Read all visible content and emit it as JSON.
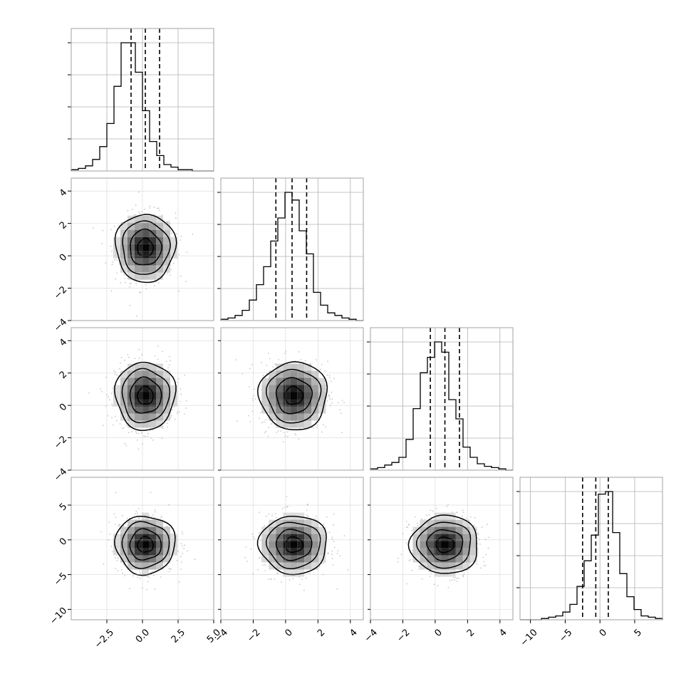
{
  "chart_data": {
    "type": "corner",
    "parameters": 4,
    "grid": true,
    "colors": {
      "ink": "#000000",
      "grid": "#b0b0b0",
      "frame": "#a0a0a0",
      "scatter": "#9a9a9a"
    },
    "contour_levels": 3,
    "params": [
      {
        "range": [
          -5.0,
          5.0
        ],
        "ticks": [
          -2.5,
          0.0,
          2.5,
          5.0
        ],
        "tick_labels": [
          "−2.5",
          "0.0",
          "2.5",
          "5.0"
        ],
        "quantiles": [
          -0.8,
          0.2,
          1.2
        ],
        "center": [
          0.2,
          0.5
        ],
        "sigma": 1.0
      },
      {
        "range": [
          -4.0,
          4.8
        ],
        "ticks": [
          -4,
          -2,
          0,
          2,
          4
        ],
        "tick_labels": [
          "−4",
          "−2",
          "0",
          "2",
          "4"
        ],
        "quantiles": [
          -0.6,
          0.4,
          1.3
        ],
        "center": 0.5,
        "sigma": 1.0
      },
      {
        "range": [
          -4.0,
          4.8
        ],
        "ticks": [
          -4,
          -2,
          0,
          2,
          4
        ],
        "tick_labels": [
          "−4",
          "−2",
          "0",
          "2",
          "4"
        ],
        "quantiles": [
          -0.3,
          0.6,
          1.5
        ],
        "center": 0.6,
        "sigma": 1.0
      },
      {
        "range": [
          -11.5,
          9.0
        ],
        "ticks": [
          -10,
          -5,
          0,
          5
        ],
        "tick_labels": [
          "−10",
          "−5",
          "0",
          "5"
        ],
        "quantiles": [
          -2.5,
          -0.6,
          1.2
        ],
        "center": -0.7,
        "sigma": 2.0
      }
    ],
    "histograms": [
      {
        "edges_range": [
          -5.0,
          5.0
        ],
        "counts": [
          1,
          2,
          4,
          9,
          19,
          37,
          66,
          100,
          100,
          77,
          47,
          23,
          12,
          5,
          3,
          1,
          1,
          0,
          0,
          0
        ]
      },
      {
        "edges_range": [
          -4.0,
          4.8
        ],
        "counts": [
          1,
          2,
          4,
          8,
          16,
          28,
          42,
          62,
          80,
          100,
          94,
          70,
          52,
          22,
          12,
          6,
          4,
          2,
          1,
          0
        ]
      },
      {
        "edges_range": [
          -4.0,
          4.8
        ],
        "counts": [
          1,
          2,
          4,
          6,
          10,
          24,
          48,
          76,
          88,
          100,
          92,
          55,
          40,
          18,
          10,
          5,
          3,
          2,
          1,
          0
        ]
      },
      {
        "edges_range": [
          -11.5,
          9.0
        ],
        "counts": [
          0,
          0,
          0,
          1,
          2,
          3,
          6,
          12,
          26,
          46,
          66,
          98,
          100,
          68,
          36,
          18,
          8,
          3,
          2,
          1
        ]
      }
    ]
  }
}
